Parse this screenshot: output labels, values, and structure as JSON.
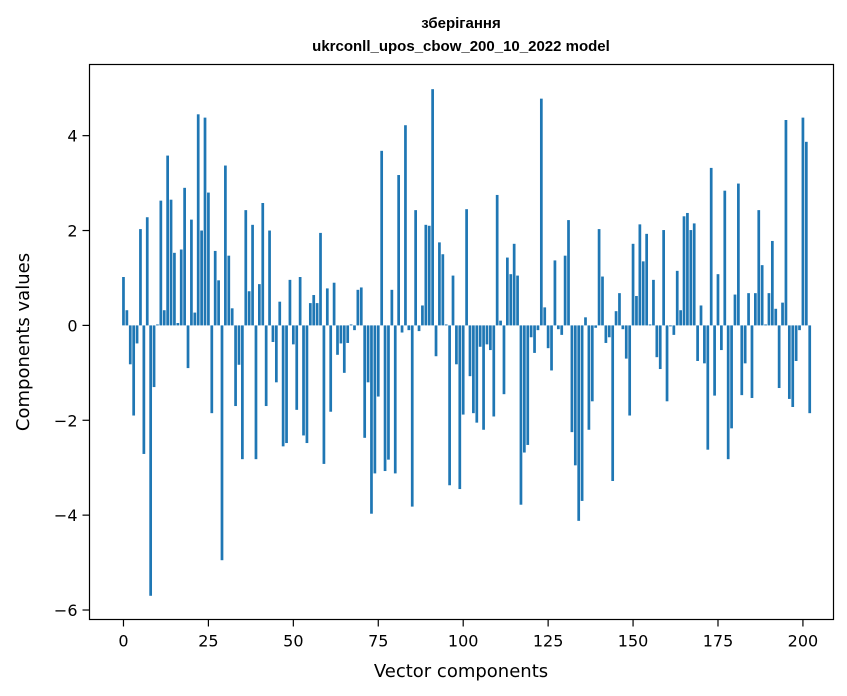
{
  "chart_data": {
    "type": "bar",
    "title_line1": "зберігання",
    "title_line2": "ukrconll_upos_cbow_200_10_2022 model",
    "xlabel": "Vector components",
    "ylabel": "Components values",
    "xlim": [
      -10,
      209
    ],
    "ylim": [
      -6.2,
      5.5
    ],
    "xticks": [
      0,
      25,
      50,
      75,
      100,
      125,
      150,
      175,
      200
    ],
    "yticks": [
      -6,
      -4,
      -2,
      0,
      2,
      4
    ],
    "ytick_labels": [
      "−6",
      "−4",
      "−2",
      "0",
      "2",
      "4"
    ],
    "bar_color": "#1f77b4",
    "grid": false,
    "values": [
      1.02,
      0.32,
      -0.82,
      -1.9,
      -0.38,
      2.03,
      -2.71,
      2.28,
      -5.7,
      -1.3,
      0.02,
      2.63,
      0.32,
      3.58,
      2.65,
      1.53,
      0.05,
      1.6,
      2.9,
      -0.9,
      2.23,
      0.27,
      4.45,
      2.0,
      4.38,
      2.8,
      -1.85,
      1.57,
      0.95,
      -4.95,
      3.37,
      1.47,
      0.36,
      -1.7,
      -0.83,
      -2.82,
      2.43,
      0.72,
      2.12,
      -2.82,
      0.87,
      2.58,
      -1.7,
      2.0,
      -0.35,
      -1.2,
      0.5,
      -2.55,
      -2.48,
      0.96,
      -0.4,
      -1.78,
      1.02,
      -2.32,
      -2.48,
      0.47,
      0.64,
      0.47,
      1.95,
      -2.92,
      0.78,
      -1.82,
      0.9,
      -0.62,
      -0.38,
      -1.0,
      -0.37,
      0.02,
      -0.1,
      0.75,
      0.8,
      -2.37,
      -1.2,
      -3.97,
      -3.12,
      -1.5,
      3.68,
      -3.07,
      -2.83,
      0.75,
      -3.12,
      3.17,
      -0.15,
      4.22,
      -0.1,
      -3.82,
      2.43,
      -0.12,
      0.42,
      2.12,
      2.1,
      4.98,
      -0.65,
      1.75,
      1.5,
      0.02,
      -3.37,
      1.05,
      -0.82,
      -3.45,
      -1.88,
      2.45,
      -1.07,
      -1.85,
      -2.05,
      -0.45,
      -2.2,
      -0.4,
      -0.52,
      -1.92,
      2.75,
      0.1,
      -1.45,
      1.43,
      1.08,
      1.72,
      1.05,
      -3.78,
      -2.68,
      -2.52,
      -0.25,
      -0.58,
      -0.1,
      4.78,
      0.38,
      -0.48,
      -0.95,
      1.37,
      -0.08,
      -0.2,
      1.47,
      2.22,
      -2.25,
      -2.95,
      -4.12,
      -3.7,
      0.17,
      -2.2,
      -1.6,
      -0.05,
      2.03,
      1.03,
      -0.37,
      -0.25,
      -3.28,
      0.3,
      0.68,
      -0.08,
      -0.7,
      -1.9,
      1.72,
      0.62,
      2.13,
      1.35,
      1.93,
      0.02,
      0.96,
      -0.67,
      -0.92,
      2.01,
      -1.6,
      -0.02,
      -0.2,
      1.15,
      0.32,
      2.3,
      2.37,
      2.01,
      2.15,
      -0.75,
      0.42,
      -0.8,
      -2.62,
      3.32,
      -1.48,
      1.08,
      -0.52,
      2.84,
      -2.82,
      -2.17,
      0.65,
      2.99,
      -1.47,
      -0.8,
      0.68,
      -1.53,
      0.68,
      2.43,
      1.27,
      0.02,
      0.68,
      1.78,
      0.35,
      -1.32,
      0.48,
      4.33,
      -1.55,
      -1.72,
      -0.75,
      -0.1,
      4.38,
      3.87,
      -1.85
    ]
  }
}
